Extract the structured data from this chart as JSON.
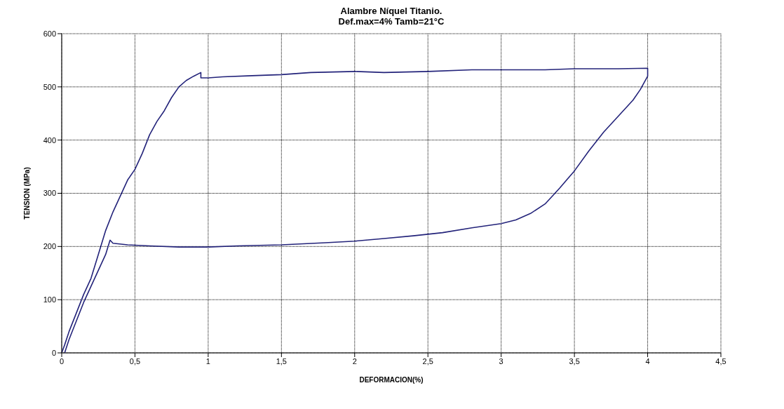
{
  "chart_data": {
    "type": "line",
    "title": "Alambre Níquel Titanio.",
    "subtitle": "Def.max=4% Tamb=21°C",
    "xlabel": "DEFORMACION(%)",
    "ylabel": "TENSION (MPa)",
    "xlim": [
      0,
      4.5
    ],
    "xticks": [
      0,
      {
        "value": 0.5,
        "label": "0,5"
      },
      1,
      {
        "value": 1.5,
        "label": "1,5"
      },
      2,
      {
        "value": 2.5,
        "label": "2,5"
      },
      3,
      {
        "value": 3.5,
        "label": "3,5"
      },
      4,
      {
        "value": 4.5,
        "label": "4,5"
      }
    ],
    "ylim": [
      0,
      600
    ],
    "yticks": [
      0,
      100,
      200,
      300,
      400,
      500,
      600
    ],
    "grid": true,
    "marker": "none",
    "line_style": "solid",
    "series": [
      {
        "color": "#23237a",
        "x": [
          0,
          0.02,
          0.05,
          0.1,
          0.15,
          0.2,
          0.25,
          0.3,
          0.35,
          0.4,
          0.45,
          0.5,
          0.55,
          0.6,
          0.65,
          0.7,
          0.75,
          0.8,
          0.85,
          0.9,
          0.95,
          0.95,
          1.0,
          1.1,
          1.3,
          1.5,
          1.7,
          2.0,
          2.2,
          2.5,
          2.8,
          3.0,
          3.3,
          3.5,
          3.8,
          4.0,
          4.0,
          3.95,
          3.9,
          3.8,
          3.7,
          3.6,
          3.5,
          3.4,
          3.3,
          3.2,
          3.1,
          3.0,
          2.8,
          2.6,
          2.4,
          2.2,
          2.0,
          1.8,
          1.5,
          1.2,
          1.0,
          0.8,
          0.6,
          0.45,
          0.35,
          0.33,
          0.3,
          0.25,
          0.2,
          0.15,
          0.1,
          0.05,
          0.02
        ],
        "values": [
          0,
          15,
          40,
          75,
          110,
          140,
          185,
          230,
          265,
          295,
          325,
          345,
          375,
          410,
          435,
          455,
          480,
          500,
          512,
          520,
          527,
          517,
          517,
          519,
          521,
          523,
          527,
          529,
          527,
          529,
          532,
          532,
          532,
          534,
          534,
          535,
          520,
          495,
          475,
          445,
          415,
          380,
          342,
          310,
          280,
          262,
          250,
          243,
          235,
          226,
          220,
          215,
          210,
          207,
          203,
          201,
          199,
          199,
          201,
          203,
          206,
          212,
          185,
          155,
          125,
          95,
          60,
          25,
          0
        ]
      }
    ]
  }
}
